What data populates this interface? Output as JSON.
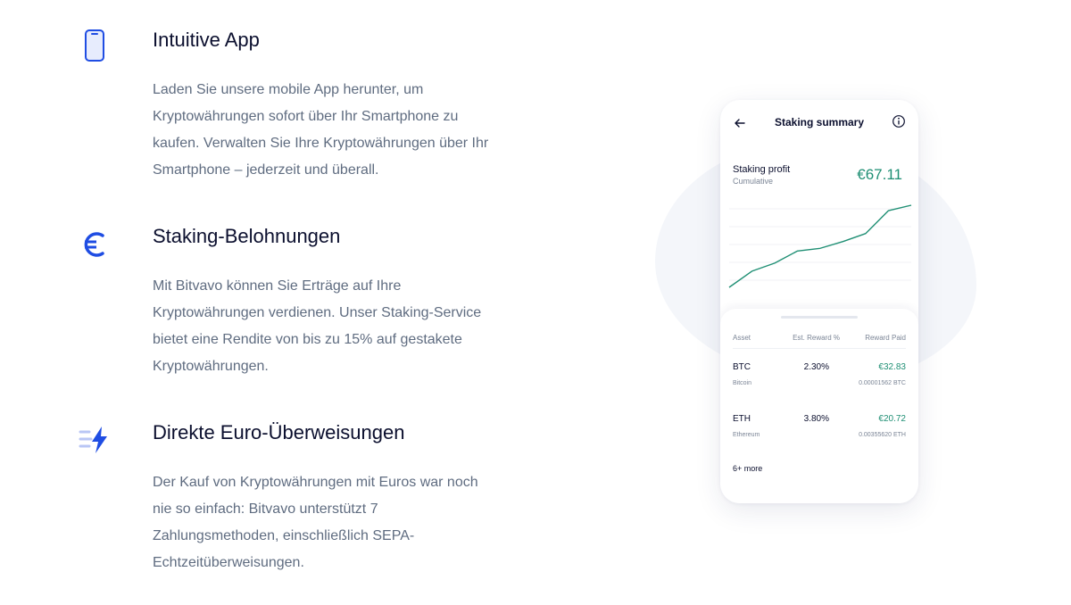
{
  "features": [
    {
      "icon": "smartphone-icon",
      "title": "Intuitive App",
      "body": "Laden Sie unsere mobile App herunter, um Kryptowährungen sofort über Ihr Smartphone zu kaufen. Verwalten Sie Ihre Kryptowährungen über Ihr Smartphone – jederzeit und überall."
    },
    {
      "icon": "euro-icon",
      "title": "Staking-Belohnungen",
      "body": "Mit Bitvavo können Sie Erträge auf Ihre Kryptowährungen verdienen. Unser Staking-Service bietet eine Rendite von bis zu 15% auf gestakete Kryptowährungen."
    },
    {
      "icon": "fast-lightning-icon",
      "title": "Direkte Euro-Überweisungen",
      "body": "Der Kauf von Kryptowährungen mit Euros war noch nie so einfach: Bitvavo unterstützt 7 Zahlungsmethoden, einschließlich SEPA-Echtzeitüberweisungen."
    }
  ],
  "phone": {
    "title": "Staking summary",
    "profit_label": "Staking profit",
    "profit_sub": "Cumulative",
    "profit_value": "€67.11",
    "table": {
      "headers": [
        "Asset",
        "Est. Reward %",
        "Reward Paid"
      ],
      "rows": [
        {
          "symbol": "BTC",
          "name": "Bitcoin",
          "rate": "2.30%",
          "paid": "€32.83",
          "amount": "0.00001562 BTC"
        },
        {
          "symbol": "ETH",
          "name": "Ethereum",
          "rate": "3.80%",
          "paid": "€20.72",
          "amount": "0.00355620 ETH"
        }
      ],
      "more": "6+ more"
    }
  },
  "chart_data": {
    "type": "line",
    "series": [
      {
        "values": [
          0,
          12,
          18,
          27,
          29,
          34,
          40,
          57,
          61
        ]
      }
    ]
  },
  "colors": {
    "icon_blue": "#1f4de3",
    "icon_light": "#b9c6f5",
    "accent_green": "#1f8f74",
    "title": "#0b0f2e",
    "body": "#5f6c80"
  }
}
